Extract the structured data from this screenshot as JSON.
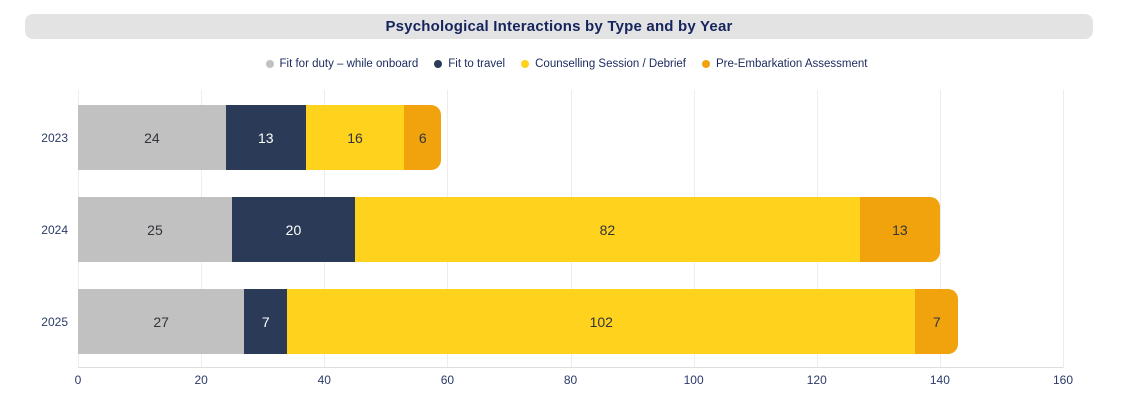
{
  "title": "Psychological Interactions by Type and by Year",
  "styles": {
    "background": "#ffffff",
    "title_bar_bg": "#e3e3e3",
    "title_color": "#16245c",
    "legend_text_color": "#1b2a5e",
    "axis_text_color": "#2c3a69",
    "grid_color": "#ededed",
    "axis_line_color": "#dedede"
  },
  "chart_data": {
    "type": "bar",
    "orientation": "horizontal",
    "stacked": true,
    "title": "Psychological Interactions by Type and by Year",
    "categories": [
      "2023",
      "2024",
      "2025"
    ],
    "series": [
      {
        "name": "Fit for duty – while onboard",
        "color": "#c2c1c1",
        "label_color": "#33343a",
        "values": [
          24,
          25,
          27
        ]
      },
      {
        "name": "Fit to travel",
        "color": "#2b3a56",
        "label_color": "#ffffff",
        "values": [
          13,
          20,
          7
        ]
      },
      {
        "name": "Counselling Session / Debrief",
        "color": "#ffd21e",
        "label_color": "#33343a",
        "values": [
          16,
          82,
          102
        ]
      },
      {
        "name": "Pre-Embarkation Assessment",
        "color": "#f0a30c",
        "label_color": "#33343a",
        "values": [
          6,
          13,
          7
        ]
      }
    ],
    "xlabel": "",
    "ylabel": "",
    "xlim": [
      0,
      160
    ],
    "x_ticks": [
      0,
      20,
      40,
      60,
      80,
      100,
      120,
      140,
      160
    ],
    "grid": true,
    "legend_position": "top"
  }
}
